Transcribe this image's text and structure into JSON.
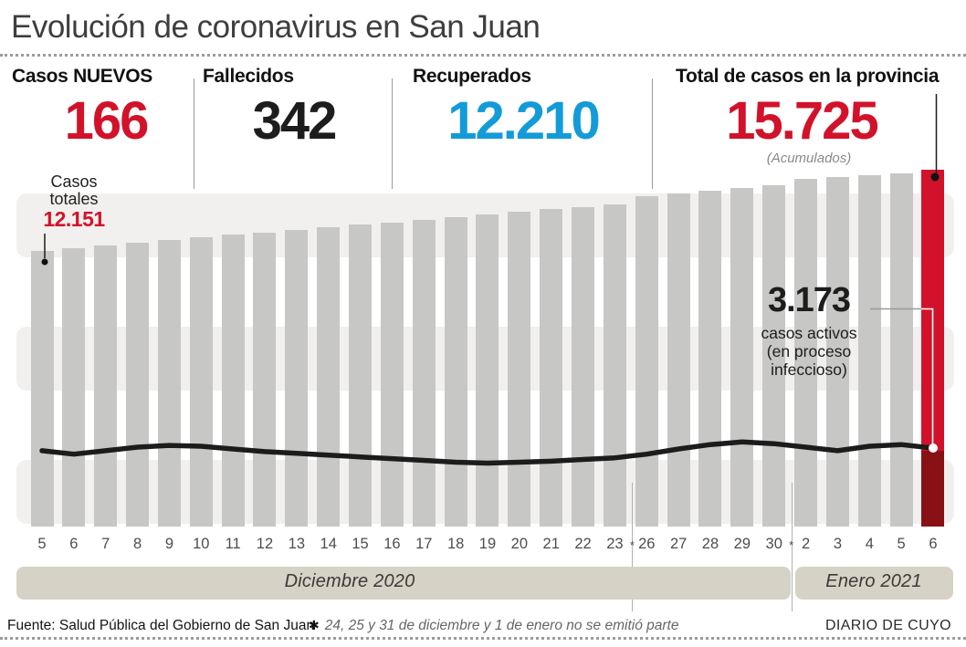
{
  "header": {
    "title": "Evolución de coronavirus en San Juan"
  },
  "stats": {
    "nuevos": {
      "label": "Casos NUEVOS",
      "value": "166",
      "color": "#d2122a"
    },
    "fallecidos": {
      "label": "Fallecidos",
      "value": "342",
      "color": "#1d1d1d"
    },
    "recuperados": {
      "label": "Recuperados",
      "value": "12.210",
      "color": "#129bd8"
    },
    "total": {
      "label": "Total de casos en la provincia",
      "value": "15.725",
      "sublabel": "(Acumulados)",
      "color": "#d2122a"
    }
  },
  "annotations": {
    "casos_totales": {
      "line1": "Casos",
      "line2": "totales",
      "value": "12.151"
    },
    "activos": {
      "value": "3.173",
      "line1": "casos activos",
      "line2": "(en proceso",
      "line3": "infeccioso)"
    }
  },
  "months": {
    "december": "Diciembre 2020",
    "january": "Enero 2021"
  },
  "footer": {
    "source": "Fuente: Salud Pública del Gobierno de San Juan",
    "note_star": "✱",
    "note": "24, 25 y 31 de diciembre y 1 de enero no se emitió parte",
    "credit": "DIARIO DE CUYO"
  },
  "chart_data": {
    "type": "bar",
    "title": "Evolución de coronavirus en San Juan",
    "categories": [
      "5",
      "6",
      "7",
      "8",
      "9",
      "10",
      "11",
      "12",
      "13",
      "14",
      "15",
      "16",
      "17",
      "18",
      "19",
      "20",
      "21",
      "22",
      "23",
      "26",
      "27",
      "28",
      "29",
      "30",
      "2",
      "3",
      "4",
      "5",
      "6"
    ],
    "series": [
      {
        "name": "Casos totales (acumulados)",
        "type": "bar",
        "color": "#c7c7c6",
        "values": [
          12151,
          12270,
          12390,
          12505,
          12620,
          12735,
          12850,
          12965,
          13080,
          13190,
          13300,
          13410,
          13520,
          13635,
          13750,
          13865,
          13980,
          14095,
          14210,
          14560,
          14680,
          14800,
          14920,
          15040,
          15330,
          15410,
          15490,
          15559,
          15725
        ]
      },
      {
        "name": "Casos activos (en proceso infeccioso)",
        "type": "line",
        "color": "#1c1c1c",
        "values": [
          3065,
          2925,
          3065,
          3210,
          3280,
          3245,
          3135,
          3030,
          2960,
          2890,
          2815,
          2745,
          2675,
          2600,
          2565,
          2600,
          2640,
          2710,
          2780,
          2925,
          3135,
          3315,
          3420,
          3350,
          3210,
          3065,
          3245,
          3315,
          3173
        ]
      }
    ],
    "highlight": {
      "index": 28,
      "bar_color": "#d2122a",
      "below_line_color": "#871114",
      "value": 15725
    },
    "first_bar_value": 12151,
    "last_active_value": 3173,
    "skipped_markers": [
      {
        "after_index": 18,
        "label": "*"
      },
      {
        "after_index": 23,
        "label": "*"
      }
    ],
    "month_bands": [
      {
        "label": "Diciembre 2020",
        "from_index": 0,
        "to_index": 23
      },
      {
        "label": "Enero 2021",
        "from_index": 24,
        "to_index": 28
      }
    ],
    "ylim": [
      0,
      15725
    ],
    "xlabel": "",
    "ylabel": "",
    "legend": "none",
    "grid": "off"
  }
}
